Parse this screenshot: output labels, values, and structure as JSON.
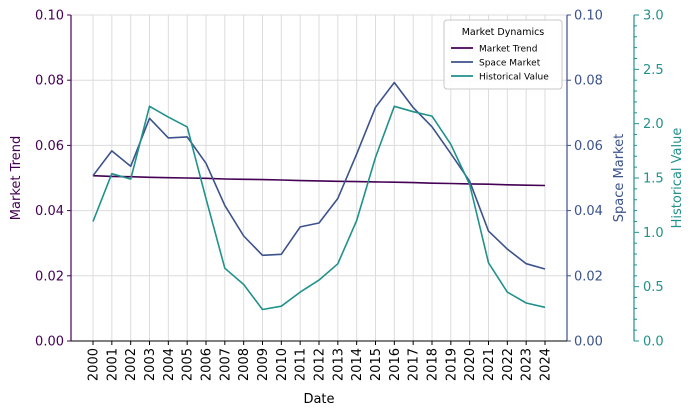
{
  "chart_data": {
    "type": "line",
    "xlabel": "Date",
    "x": [
      "2000",
      "2001",
      "2002",
      "2003",
      "2004",
      "2005",
      "2006",
      "2007",
      "2008",
      "2009",
      "2010",
      "2011",
      "2012",
      "2013",
      "2014",
      "2015",
      "2016",
      "2017",
      "2018",
      "2019",
      "2020",
      "2021",
      "2022",
      "2023",
      "2024"
    ],
    "grid": true,
    "legend": {
      "title": "Market Dynamics",
      "placement": "top-right"
    },
    "axes": [
      {
        "name": "Market Trend",
        "side": "left",
        "ylim": [
          0,
          0.1
        ],
        "ticks": [
          "0.00",
          "0.02",
          "0.04",
          "0.06",
          "0.08",
          "0.10"
        ],
        "color": "#440154"
      },
      {
        "name": "Space Market",
        "side": "right",
        "ylim": [
          0,
          0.1
        ],
        "ticks": [
          "0.00",
          "0.02",
          "0.04",
          "0.06",
          "0.08",
          "0.10"
        ],
        "color": "#3b528b"
      },
      {
        "name": "Historical Value",
        "side": "right-outer",
        "ylim": [
          0,
          3.0
        ],
        "ticks": [
          "0.0",
          "0.5",
          "1.0",
          "1.5",
          "2.0",
          "2.5",
          "3.0"
        ],
        "color": "#21918c"
      }
    ],
    "series": [
      {
        "name": "Market Trend",
        "axis": 0,
        "color": "#440154",
        "values": [
          0.0507,
          0.0505,
          0.0504,
          0.0502,
          0.0501,
          0.05,
          0.0499,
          0.0497,
          0.0496,
          0.0495,
          0.0494,
          0.0492,
          0.0491,
          0.049,
          0.0489,
          0.0488,
          0.0487,
          0.0486,
          0.0484,
          0.0483,
          0.0482,
          0.0481,
          0.0479,
          0.0478,
          0.0477
        ]
      },
      {
        "name": "Space Market",
        "axis": 1,
        "color": "#3b528b",
        "values": [
          0.0507,
          0.0583,
          0.0536,
          0.0683,
          0.0623,
          0.0626,
          0.0545,
          0.0416,
          0.0322,
          0.0263,
          0.0266,
          0.035,
          0.0362,
          0.0437,
          0.0574,
          0.0717,
          0.0793,
          0.0716,
          0.0657,
          0.0575,
          0.049,
          0.0337,
          0.0282,
          0.0237,
          0.0221
        ]
      },
      {
        "name": "Historical Value",
        "axis": 2,
        "color": "#21918c",
        "values": [
          1.1,
          1.54,
          1.49,
          2.16,
          2.06,
          1.97,
          1.31,
          0.67,
          0.52,
          0.29,
          0.32,
          0.45,
          0.56,
          0.71,
          1.11,
          1.69,
          2.16,
          2.11,
          2.07,
          1.81,
          1.44,
          0.72,
          0.45,
          0.35,
          0.31
        ]
      }
    ]
  }
}
